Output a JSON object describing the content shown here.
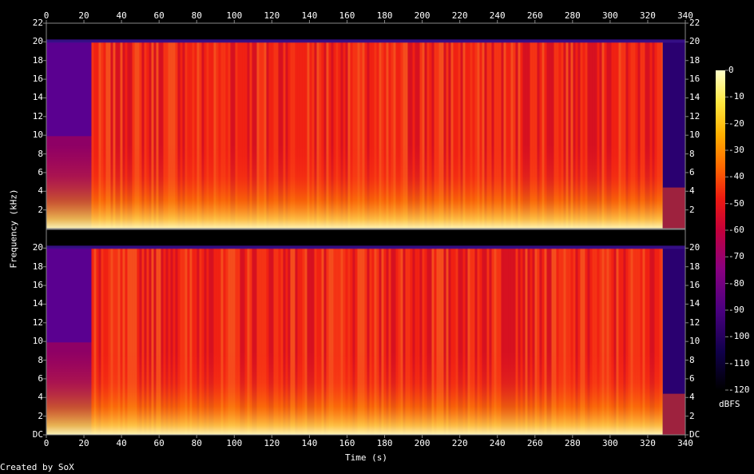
{
  "chart_data": {
    "type": "heatmap",
    "title": "",
    "xlabel": "Time (s)",
    "ylabel": "Frequency (kHz)",
    "xlim": [
      0,
      340
    ],
    "ylim": [
      0,
      22
    ],
    "x_ticks": [
      "0",
      "20",
      "40",
      "60",
      "80",
      "100",
      "120",
      "140",
      "160",
      "180",
      "200",
      "220",
      "240",
      "260",
      "280",
      "300",
      "320",
      "340"
    ],
    "y_ticks_top": [
      "2",
      "4",
      "6",
      "8",
      "10",
      "12",
      "14",
      "16",
      "18",
      "20",
      "22"
    ],
    "y_ticks_bottom": [
      "DC",
      "2",
      "4",
      "6",
      "8",
      "10",
      "12",
      "14",
      "16",
      "18",
      "20"
    ],
    "channels": 2,
    "colorbar": {
      "label": "dBFS",
      "range": [
        -120,
        0
      ],
      "ticks": [
        "0",
        "-10",
        "-20",
        "-30",
        "-40",
        "-50",
        "-60",
        "-70",
        "-80",
        "-90",
        "-100",
        "-110",
        "-120"
      ],
      "colors": [
        "#000000",
        "#10004a",
        "#4a0080",
        "#8a0080",
        "#c4003a",
        "#ee1a10",
        "#ff6a00",
        "#ffb000",
        "#ffe840",
        "#ffffc8"
      ]
    },
    "content_cutoff_khz": 20,
    "silence_before_s": 24,
    "fade_out_s": 328,
    "end_s": 340
  },
  "footer": {
    "credit": "Created by SoX"
  }
}
